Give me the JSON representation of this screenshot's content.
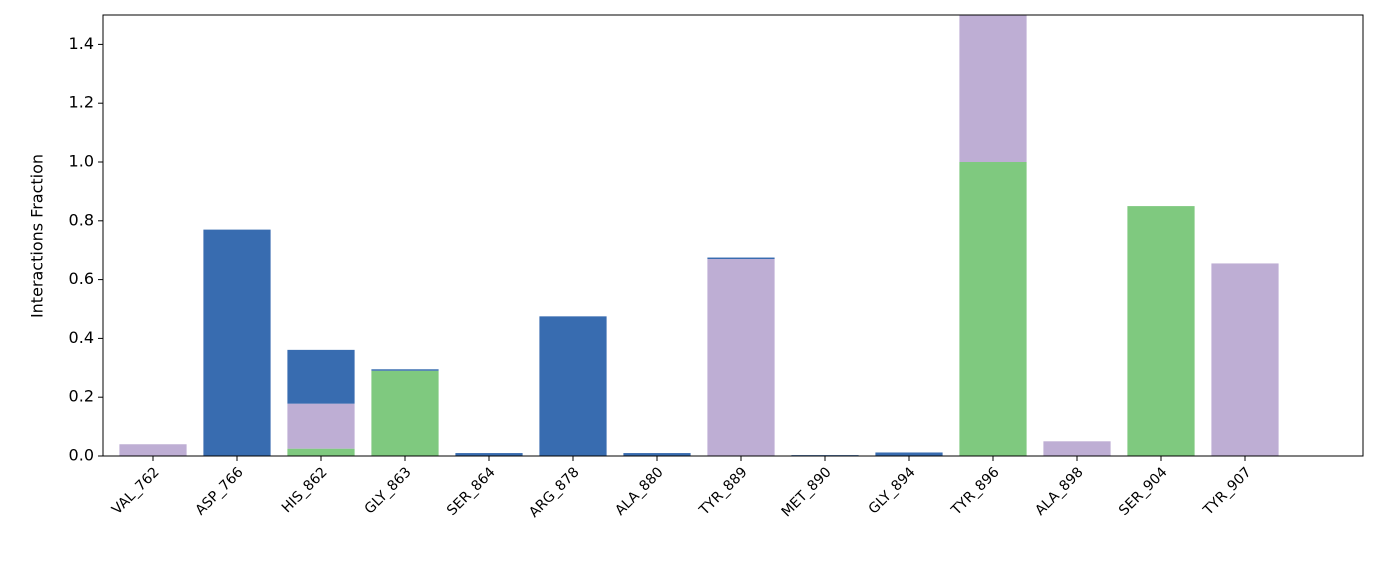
{
  "chart_data": {
    "type": "stacked_bar",
    "y_label": "Interactions Fraction",
    "categories": [
      "VAL_762",
      "ASP_766",
      "HIS_862",
      "GLY_863",
      "SER_864",
      "ARG_878",
      "ALA_880",
      "TYR_889",
      "MET_890",
      "GLY_894",
      "TYR_896",
      "ALA_898",
      "SER_904",
      "TYR_907"
    ],
    "series": [
      {
        "color": "#7fc97f",
        "values": [
          0,
          0,
          0.025,
          0.29,
          0,
          0,
          0,
          0,
          0,
          0,
          1.0,
          0,
          0.85,
          0
        ]
      },
      {
        "color": "#beaed4",
        "values": [
          0.04,
          0,
          0.153,
          0,
          0,
          0,
          0,
          0.67,
          0,
          0,
          0.5,
          0.05,
          0,
          0.655
        ]
      },
      {
        "color": "#386cb0",
        "values": [
          0,
          0.77,
          0.183,
          0.005,
          0.01,
          0.475,
          0.01,
          0.005,
          0.003,
          0.012,
          0,
          0,
          0,
          0
        ]
      }
    ],
    "ylim": [
      0,
      1.5
    ],
    "yticks": [
      {
        "value": 0,
        "label": "0.0"
      },
      0.2,
      0.4,
      0.6,
      0.8,
      {
        "value": 1,
        "label": "1.0"
      },
      1.2,
      1.4
    ]
  }
}
